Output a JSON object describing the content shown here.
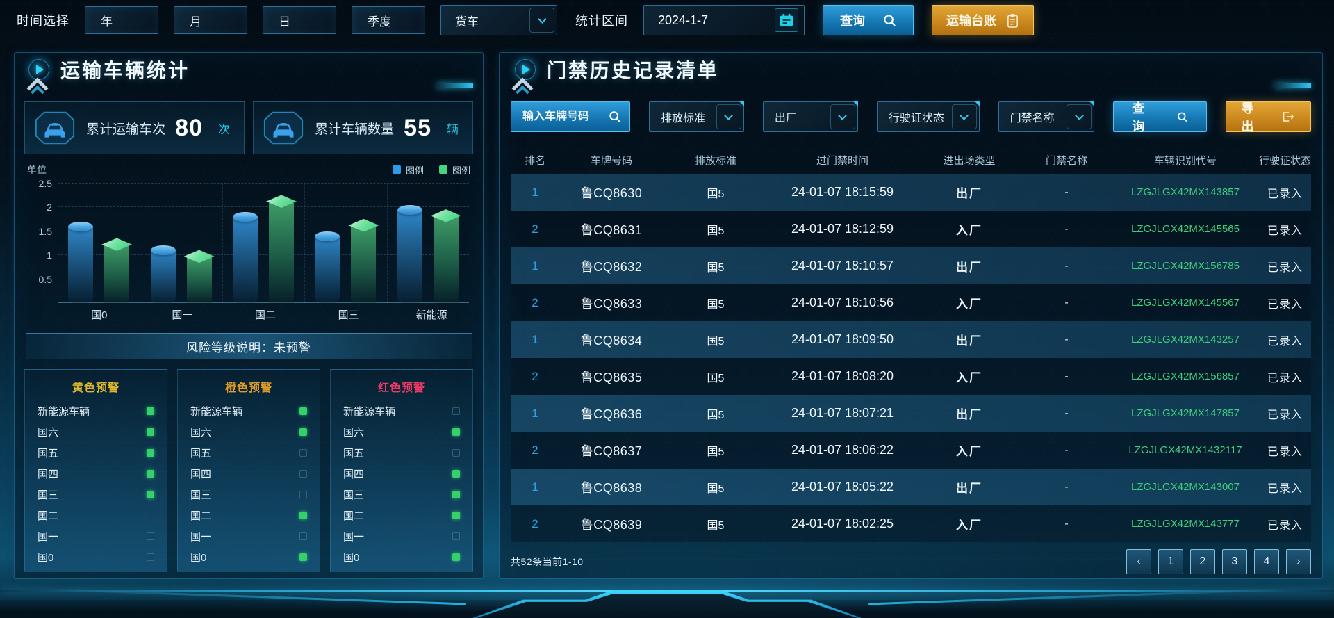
{
  "colors": {
    "accent": "#2fc8f0",
    "series_blue": "#2d9ce8",
    "series_green": "#46d47e",
    "button_orange": "#d8941f",
    "vin_green": "#3fcf7b"
  },
  "topbar": {
    "time_label": "时间选择",
    "period_buttons": [
      "年",
      "月",
      "日",
      "季度"
    ],
    "vehicle_type": "货车",
    "range_label": "统计区间",
    "date_value": "2024-1-7",
    "query_label": "查询",
    "ledger_label": "运输台账"
  },
  "left_panel": {
    "title": "运输车辆统计",
    "stats": [
      {
        "label": "累计运输车次",
        "value": "80",
        "unit": "次"
      },
      {
        "label": "累计车辆数量",
        "value": "55",
        "unit": "辆"
      }
    ],
    "risk_note": "风险等级说明：未预警",
    "warning_labels": [
      "新能源车辆",
      "国六",
      "国五",
      "国四",
      "国三",
      "国二",
      "国一",
      "国0"
    ],
    "warnings": [
      {
        "title": "黄色预警",
        "color": "#dcb92a",
        "states": [
          true,
          true,
          true,
          true,
          true,
          false,
          false,
          false
        ]
      },
      {
        "title": "橙色预警",
        "color": "#e09c2a",
        "states": [
          true,
          true,
          false,
          false,
          false,
          true,
          false,
          true
        ]
      },
      {
        "title": "红色预警",
        "color": "#ef3a68",
        "states": [
          false,
          true,
          false,
          true,
          true,
          true,
          false,
          true
        ]
      }
    ]
  },
  "chart_data": {
    "type": "bar",
    "unit_label": "单位",
    "categories": [
      "国0",
      "国一",
      "国二",
      "国三",
      "新能源"
    ],
    "series": [
      {
        "name": "图例",
        "color": "#2d9ce8",
        "values": [
          1.6,
          1.1,
          1.8,
          1.4,
          1.95
        ]
      },
      {
        "name": "图例",
        "color": "#46d47e",
        "values": [
          1.2,
          0.95,
          2.1,
          1.6,
          1.8
        ]
      }
    ],
    "ylim": [
      0,
      2.5
    ],
    "y_ticks": [
      "0.5",
      "1",
      "1.5",
      "2",
      "2.5"
    ],
    "grid": "dashed horizontal + vertical, legend top-right"
  },
  "right_panel": {
    "title": "门禁历史记录清单",
    "filters": {
      "search_placeholder": "输入车牌号码",
      "dropdowns": [
        "排放标准",
        "出厂",
        "行驶证状态",
        "门禁名称"
      ],
      "query_label": "查询",
      "export_label": "导出"
    },
    "table": {
      "headers": [
        "排名",
        "车牌号码",
        "排放标准",
        "过门禁时间",
        "进出场类型",
        "门禁名称",
        "车辆识别代号",
        "行驶证状态"
      ],
      "rows": [
        [
          "1",
          "鲁CQ8630",
          "国5",
          "24-01-07 18:15:59",
          "出厂",
          "-",
          "LZGJLGX42MX143857",
          "已录入"
        ],
        [
          "2",
          "鲁CQ8631",
          "国5",
          "24-01-07 18:12:59",
          "入厂",
          "-",
          "LZGJLGX42MX145565",
          "已录入"
        ],
        [
          "1",
          "鲁CQ8632",
          "国5",
          "24-01-07 18:10:57",
          "出厂",
          "-",
          "LZGJLGX42MX156785",
          "已录入"
        ],
        [
          "2",
          "鲁CQ8633",
          "国5",
          "24-01-07 18:10:56",
          "入厂",
          "-",
          "LZGJLGX42MX145567",
          "已录入"
        ],
        [
          "1",
          "鲁CQ8634",
          "国5",
          "24-01-07 18:09:50",
          "出厂",
          "-",
          "LZGJLGX42MX143257",
          "已录入"
        ],
        [
          "2",
          "鲁CQ8635",
          "国5",
          "24-01-07 18:08:20",
          "入厂",
          "-",
          "LZGJLGX42MX156857",
          "已录入"
        ],
        [
          "1",
          "鲁CQ8636",
          "国5",
          "24-01-07 18:07:21",
          "出厂",
          "-",
          "LZGJLGX42MX147857",
          "已录入"
        ],
        [
          "2",
          "鲁CQ8637",
          "国5",
          "24-01-07 18:06:22",
          "入厂",
          "-",
          "LZGJLGX42MX1432117",
          "已录入"
        ],
        [
          "1",
          "鲁CQ8638",
          "国5",
          "24-01-07 18:05:22",
          "出厂",
          "-",
          "LZGJLGX42MX143007",
          "已录入"
        ],
        [
          "2",
          "鲁CQ8639",
          "国5",
          "24-01-07 18:02:25",
          "入厂",
          "-",
          "LZGJLGX42MX143777",
          "已录入"
        ]
      ]
    },
    "footer": {
      "summary": "共52条当前1-10",
      "prev": "‹",
      "pages": [
        "1",
        "2",
        "3",
        "4"
      ],
      "next": "›"
    }
  }
}
